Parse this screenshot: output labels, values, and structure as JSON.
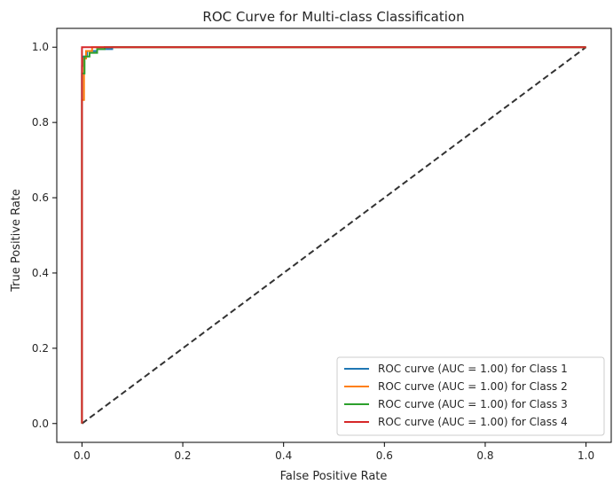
{
  "chart_data": {
    "type": "line",
    "title": "ROC Curve for Multi-class Classification",
    "xlabel": "False Positive Rate",
    "ylabel": "True Positive Rate",
    "xlim": [
      -0.05,
      1.05
    ],
    "ylim": [
      -0.05,
      1.05
    ],
    "xticks": [
      0.0,
      0.2,
      0.4,
      0.6,
      0.8,
      1.0
    ],
    "yticks": [
      0.0,
      0.2,
      0.4,
      0.6,
      0.8,
      1.0
    ],
    "tick_labels_x": [
      "0.0",
      "0.2",
      "0.4",
      "0.6",
      "0.8",
      "1.0"
    ],
    "tick_labels_y": [
      "0.0",
      "0.2",
      "0.4",
      "0.6",
      "0.8",
      "1.0"
    ],
    "grid": false,
    "legend_position": "lower-right",
    "series": [
      {
        "name": "ROC curve (AUC = 1.00) for Class 1",
        "color": "#1f77b4",
        "x": [
          0.0,
          0.0,
          0.003,
          0.003,
          0.01,
          0.01,
          0.03,
          0.03,
          0.06,
          0.06,
          1.0
        ],
        "y": [
          0.0,
          0.95,
          0.95,
          0.975,
          0.975,
          0.99,
          0.99,
          0.995,
          0.995,
          1.0,
          1.0
        ]
      },
      {
        "name": "ROC curve (AUC = 1.00) for Class 2",
        "color": "#ff7f0e",
        "x": [
          0.0,
          0.0,
          0.004,
          0.004,
          0.008,
          0.008,
          0.02,
          0.02,
          1.0
        ],
        "y": [
          0.0,
          0.86,
          0.86,
          0.97,
          0.97,
          0.99,
          0.99,
          1.0,
          1.0
        ]
      },
      {
        "name": "ROC curve (AUC = 1.00) for Class 3",
        "color": "#2ca02c",
        "x": [
          0.0,
          0.0,
          0.005,
          0.005,
          0.015,
          0.015,
          0.03,
          0.03,
          0.045,
          0.045,
          1.0
        ],
        "y": [
          0.0,
          0.93,
          0.93,
          0.975,
          0.975,
          0.985,
          0.985,
          0.995,
          0.995,
          1.0,
          1.0
        ]
      },
      {
        "name": "ROC curve (AUC = 1.00) for Class 4",
        "color": "#d62728",
        "x": [
          0.0,
          0.0,
          1.0
        ],
        "y": [
          0.0,
          1.0,
          1.0
        ]
      }
    ],
    "reference_line": {
      "x": [
        0.0,
        1.0
      ],
      "y": [
        0.0,
        1.0
      ],
      "color": "#333333",
      "style": "dashed"
    }
  }
}
